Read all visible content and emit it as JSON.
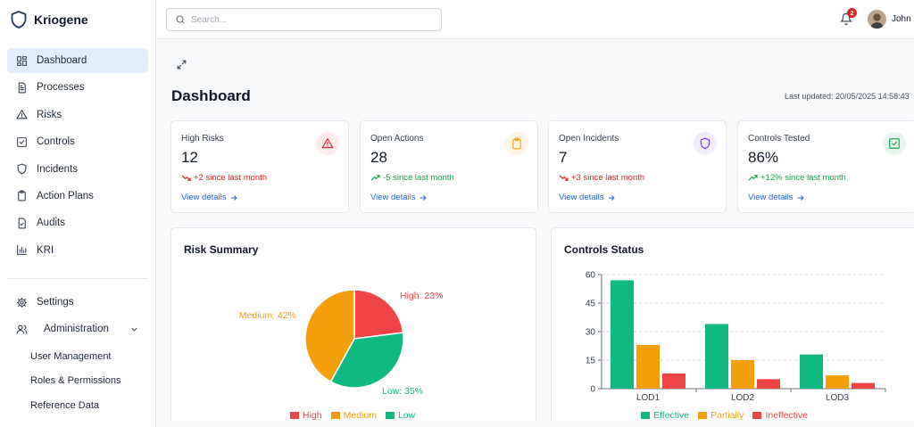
{
  "app": {
    "name": "Kriogene"
  },
  "sidebar": {
    "items": [
      {
        "label": "Dashboard",
        "icon": "grid-icon",
        "active": true
      },
      {
        "label": "Processes",
        "icon": "document-icon"
      },
      {
        "label": "Risks",
        "icon": "warning-icon"
      },
      {
        "label": "Controls",
        "icon": "checkbox-icon"
      },
      {
        "label": "Incidents",
        "icon": "shield-icon"
      },
      {
        "label": "Action Plans",
        "icon": "clipboard-icon"
      },
      {
        "label": "Audits",
        "icon": "file-check-icon"
      },
      {
        "label": "KRI",
        "icon": "bar-chart-icon"
      }
    ],
    "settings_label": "Settings",
    "administration_label": "Administration",
    "admin_subitems": [
      "User Management",
      "Roles & Permissions",
      "Reference Data"
    ]
  },
  "header": {
    "search_placeholder": "Search...",
    "notification_count": "2",
    "user_name": "John D"
  },
  "main": {
    "title": "Dashboard",
    "last_updated": "Last updated: 20/05/2025 14:58:43",
    "cards": [
      {
        "title": "High Risks",
        "value": "12",
        "delta": "+2 since last month",
        "delta_color": "#dc2626",
        "trend": "down",
        "link": "View details",
        "icon": "warning-icon",
        "icon_color": "#dc2626",
        "icon_bg": "#fdecec"
      },
      {
        "title": "Open Actions",
        "value": "28",
        "delta": "-5 since last month",
        "delta_color": "#16a34a",
        "trend": "up",
        "link": "View details",
        "icon": "clipboard-icon",
        "icon_color": "#f59e0b",
        "icon_bg": "#fef5e4"
      },
      {
        "title": "Open Incidents",
        "value": "7",
        "delta": "+3 since last month",
        "delta_color": "#dc2626",
        "trend": "down",
        "link": "View details",
        "icon": "shield-icon",
        "icon_color": "#7c3aed",
        "icon_bg": "#f1ecfd"
      },
      {
        "title": "Controls Tested",
        "value": "86%",
        "delta": "+12% since last month",
        "delta_color": "#16a34a",
        "trend": "up",
        "link": "View details",
        "icon": "checkbox-icon",
        "icon_color": "#16a34a",
        "icon_bg": "#e7f6ec"
      }
    ]
  },
  "chart_data": [
    {
      "type": "pie",
      "title": "Risk Summary",
      "series": [
        {
          "name": "High",
          "value": 23,
          "label": "High: 23%",
          "color": "#ef4444"
        },
        {
          "name": "Medium",
          "value": 42,
          "label": "Medium: 42%",
          "color": "#f59e0b"
        },
        {
          "name": "Low",
          "value": 35,
          "label": "Low: 35%",
          "color": "#10b981"
        }
      ],
      "legend": "bottom"
    },
    {
      "type": "bar",
      "title": "Controls Status",
      "categories": [
        "LOD1",
        "LOD2",
        "LOD3"
      ],
      "series": [
        {
          "name": "Effective",
          "values": [
            57,
            34,
            18
          ],
          "color": "#10b981"
        },
        {
          "name": "Partially",
          "values": [
            23,
            15,
            7
          ],
          "color": "#f59e0b"
        },
        {
          "name": "Ineffective",
          "values": [
            8,
            5,
            3
          ],
          "color": "#ef4444"
        }
      ],
      "ylim": [
        0,
        60
      ],
      "yticks": [
        "0",
        "15",
        "30",
        "45",
        "60"
      ],
      "grid": true,
      "legend": "bottom"
    }
  ]
}
